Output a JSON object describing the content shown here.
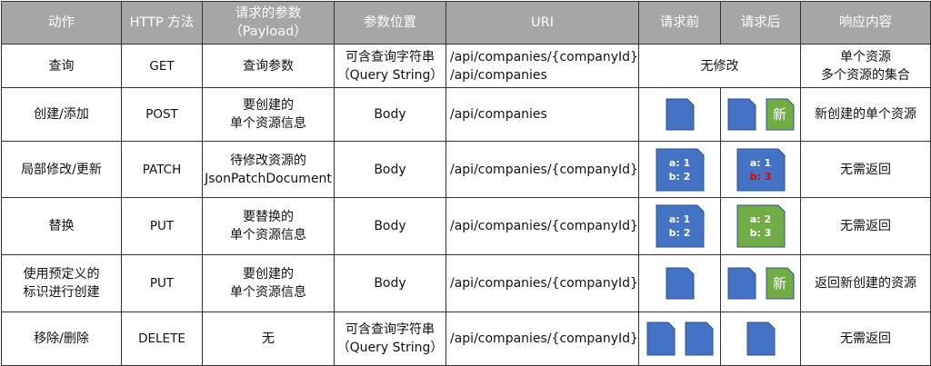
{
  "headers": [
    "动作",
    "HTTP 方法",
    "请求的参数\n（Payload）",
    "参数位置",
    "URI",
    "请求前",
    "请求后",
    "响应内容"
  ],
  "headers_payload": {
    "line1": "请求的参数",
    "line2": "（Payload）"
  },
  "rows": [
    {
      "action": "查询",
      "method": "GET",
      "payload": [
        "查询参数"
      ],
      "location": [
        "可含查询字符串",
        "（Query String）"
      ],
      "uri": [
        "/api/companies/{companyId}",
        "/api/companies"
      ],
      "before_after": "无修改",
      "response": [
        "单个资源",
        "多个资源的集合"
      ]
    },
    {
      "action": "创建/添加",
      "method": "POST",
      "payload": [
        "要创建的",
        "单个资源信息"
      ],
      "location": [
        "Body"
      ],
      "uri": [
        "/api/companies"
      ],
      "response": [
        "新创建的单个资源"
      ],
      "new_label": "新"
    },
    {
      "action": "局部修改/更新",
      "method": "PATCH",
      "payload": [
        "待修改资源的",
        "JsonPatchDocument"
      ],
      "location": [
        "Body"
      ],
      "uri": [
        "/api/companies/{companyId}"
      ],
      "before": [
        "a: 1",
        "b: 2"
      ],
      "after": [
        "a: 1",
        "b: 3"
      ],
      "response": [
        "无需返回"
      ]
    },
    {
      "action": "替换",
      "method": "PUT",
      "payload": [
        "要替换的",
        "单个资源信息"
      ],
      "location": [
        "Body"
      ],
      "uri": [
        "/api/companies/{companyId}"
      ],
      "before": [
        "a: 1",
        "b: 2"
      ],
      "after": [
        "a: 2",
        "b: 3"
      ],
      "response": [
        "无需返回"
      ]
    },
    {
      "action": [
        "使用预定义的",
        "标识进行创建"
      ],
      "method": "PUT",
      "payload": [
        "要创建的",
        "单个资源信息"
      ],
      "location": [
        "Body"
      ],
      "uri": [
        "/api/companies/{companyId}"
      ],
      "response": [
        "返回新创建的资源"
      ],
      "new_label": "新"
    },
    {
      "action": "移除/删除",
      "method": "DELETE",
      "payload": [
        "无"
      ],
      "location": [
        "可含查询字符串",
        "（Query String）"
      ],
      "uri": [
        "/api/companies/{companyId}"
      ],
      "response": [
        "无需返回"
      ]
    }
  ],
  "colors": {
    "header_bg": "#a6a6a6",
    "doc_blue": "#4472c4",
    "doc_green": "#70ad47",
    "changed_value": "#e00000"
  }
}
